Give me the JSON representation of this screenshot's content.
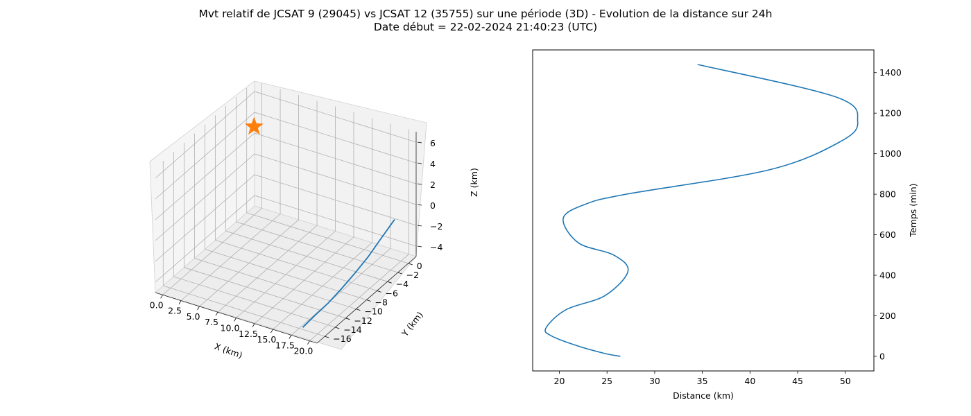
{
  "figure": {
    "title_line1": "Mvt relatif de JCSAT 9 (29045) vs JCSAT 12 (35755) sur une période (3D) - Evolution de la distance sur 24h",
    "title_line2": "Date début = 22-02-2024 21:40:23 (UTC)"
  },
  "chart_data": [
    {
      "type": "line",
      "projection": "3d",
      "xlabel": "X (km)",
      "ylabel": "Y (km)",
      "zlabel": "Z (km)",
      "xlim": [
        -1,
        21
      ],
      "ylim": [
        -17.5,
        1.5
      ],
      "zlim": [
        -5,
        7
      ],
      "x_ticks": [
        "0.0",
        "2.5",
        "5.0",
        "7.5",
        "10.0",
        "12.5",
        "15.0",
        "17.5",
        "20.0"
      ],
      "y_ticks": [
        "0",
        "−2",
        "−4",
        "−6",
        "−8",
        "−10",
        "−12",
        "−14",
        "−16"
      ],
      "z_ticks": [
        "6",
        "4",
        "2",
        "0",
        "−2",
        "−4"
      ],
      "grid": true,
      "series": [
        {
          "color": "#1f77b4",
          "x": [
            18.0,
            18.2,
            18.6,
            19.0,
            19.4,
            19.8,
            20.0,
            20.2
          ],
          "y": [
            -16.0,
            -14.0,
            -12.0,
            -10.0,
            -8.0,
            -6.0,
            -4.0,
            -1.5
          ],
          "z": [
            -4.8,
            -4.5,
            -4.1,
            -3.5,
            -2.8,
            -2.0,
            -1.2,
            -0.3
          ]
        }
      ],
      "markers": [
        {
          "marker": "star",
          "color": "#ff7f0e",
          "x": 0,
          "y": 0,
          "z": 3.5
        }
      ]
    },
    {
      "type": "line",
      "xlabel": "Distance (km)",
      "ylabel": "Temps (min)",
      "y_axis_side": "right",
      "xlim": [
        17.2,
        53.0
      ],
      "ylim": [
        -72,
        1512
      ],
      "x_ticks": [
        20,
        25,
        30,
        35,
        40,
        45,
        50
      ],
      "y_ticks": [
        0,
        200,
        400,
        600,
        800,
        1000,
        1200,
        1400
      ],
      "grid": false,
      "series": [
        {
          "color": "#1f77b4",
          "x": [
            26.4,
            24.7,
            22.0,
            19.2,
            18.6,
            20.7,
            24.8,
            27.2,
            25.7,
            22.0,
            20.4,
            22.7,
            27.0,
            42.0,
            49.5,
            51.3,
            49.0,
            34.5
          ],
          "y": [
            0,
            15,
            50,
            100,
            140,
            230,
            300,
            420,
            500,
            560,
            680,
            750,
            800,
            920,
            1060,
            1160,
            1280,
            1440
          ]
        }
      ]
    }
  ]
}
